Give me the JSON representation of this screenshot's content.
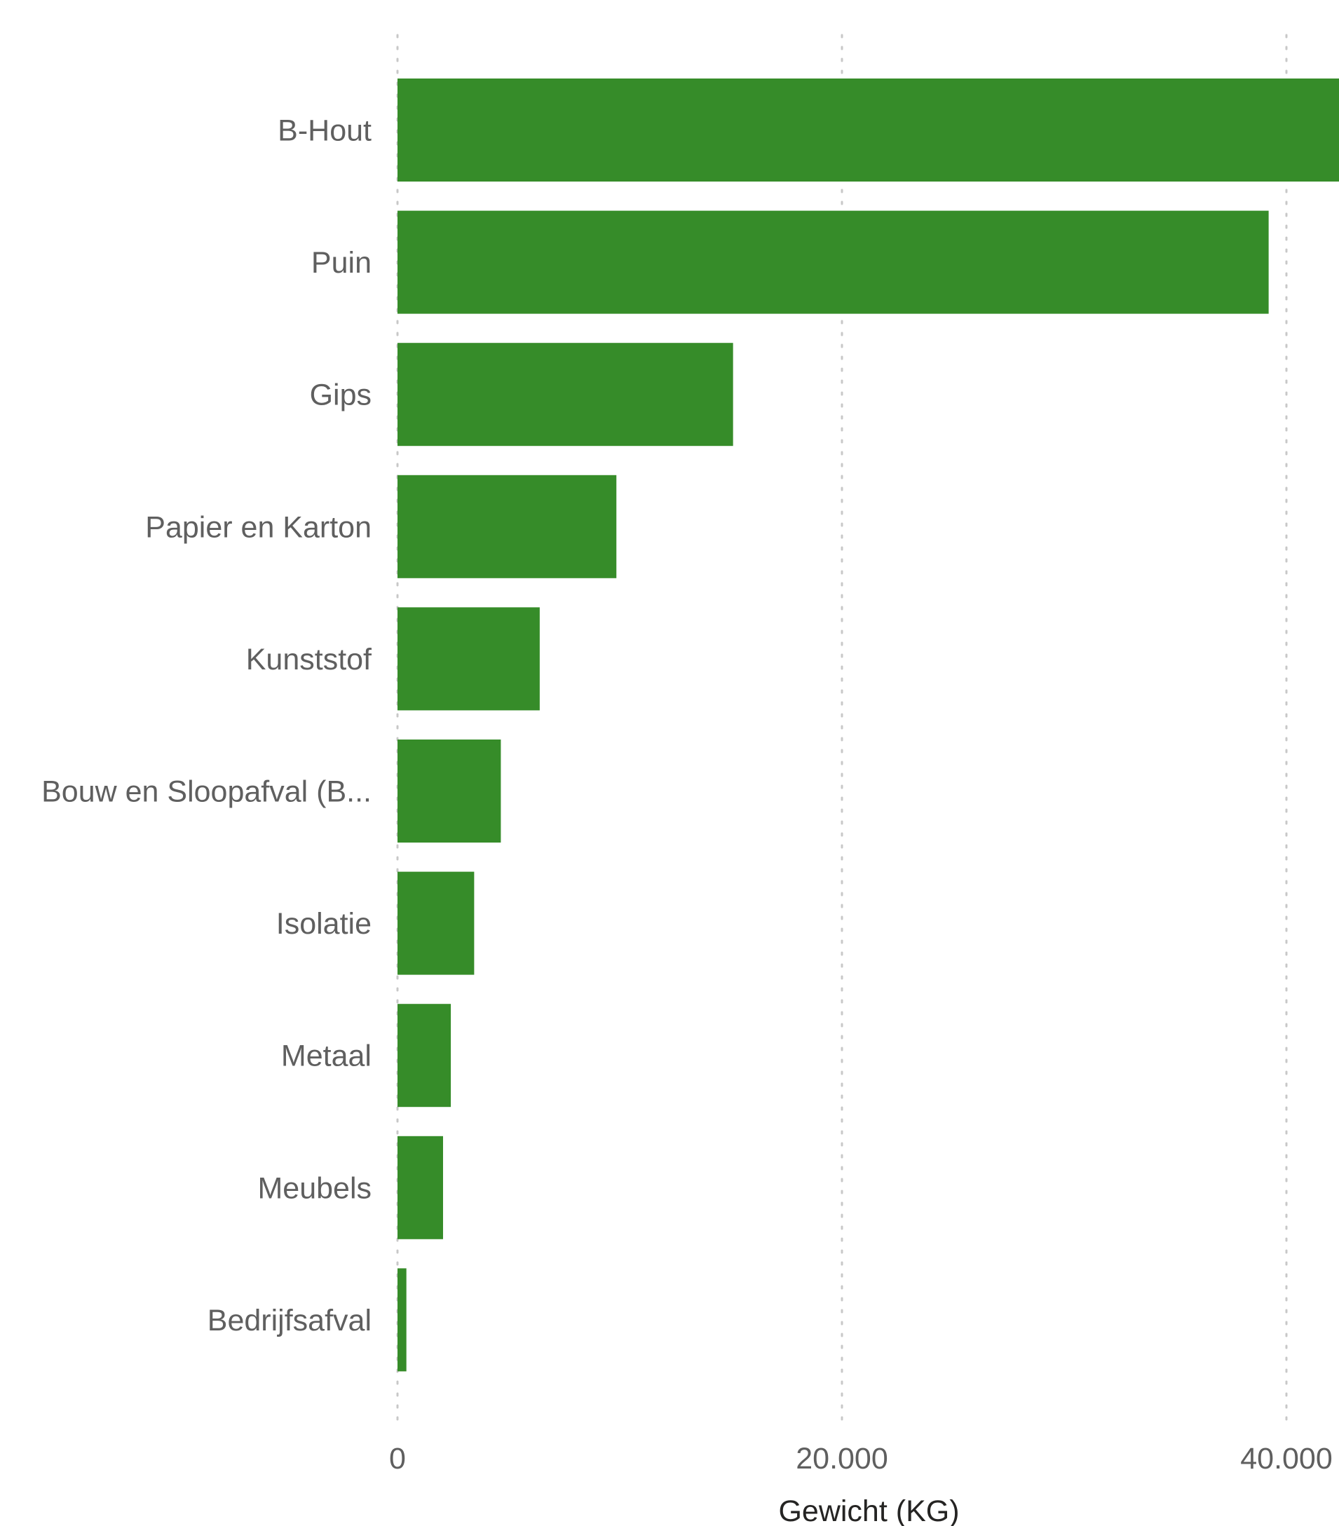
{
  "colors": {
    "bar": "#368c29",
    "gridline": "#c8c8c8",
    "label": "#5f5f5f",
    "axis_title": "#252423",
    "background": "#ffffff"
  },
  "chart_data": {
    "type": "bar",
    "orientation": "horizontal",
    "categories": [
      "B-Hout",
      "Puin",
      "Gips",
      "Papier en Karton",
      "Kunststof",
      "Bouw en Sloopafval (B...",
      "Isolatie",
      "Metaal",
      "Meubels",
      "Bedrijfsafval"
    ],
    "values": [
      42500,
      39200,
      15100,
      9850,
      6400,
      4650,
      3450,
      2400,
      2050,
      400
    ],
    "xlabel": "Gewicht (KG)",
    "ylabel": "",
    "xlim": [
      0,
      42400
    ],
    "xticks": [
      0,
      20000,
      40000
    ],
    "xtick_labels": [
      "0",
      "20.000",
      "40.000"
    ],
    "grid": true,
    "legend": "none"
  }
}
